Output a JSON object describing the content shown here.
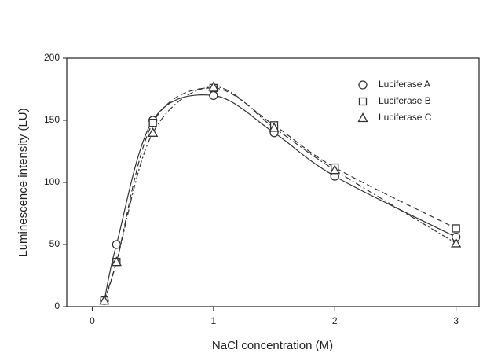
{
  "chart_data": {
    "type": "line",
    "x_label": "NaCl concentration (M)",
    "y_label": "Luminescence intensity (LU)",
    "x": [
      0.1,
      0.2,
      0.5,
      1,
      1.5,
      2,
      3
    ],
    "series": [
      {
        "name": "Luciferase A",
        "color": "#333333",
        "marker": "circle",
        "line_style": "solid",
        "values": [
          5,
          50,
          150,
          170,
          140,
          105,
          56
        ]
      },
      {
        "name": "Luciferase B",
        "color": "#333333",
        "marker": "square",
        "line_style": "dashed",
        "values": [
          5,
          36,
          148,
          176,
          146,
          112,
          63
        ]
      },
      {
        "name": "Luciferase C",
        "color": "#333333",
        "marker": "triangle",
        "line_style": "dashdot",
        "values": [
          5,
          36,
          140,
          177,
          144,
          110,
          51
        ]
      }
    ],
    "xlim": [
      -0.21,
      3.19
    ],
    "xticks": [
      0,
      1,
      2,
      3
    ],
    "ylim": [
      0,
      200
    ],
    "yticks": [
      0,
      50,
      100,
      150,
      200
    ],
    "legend": "upper right"
  }
}
